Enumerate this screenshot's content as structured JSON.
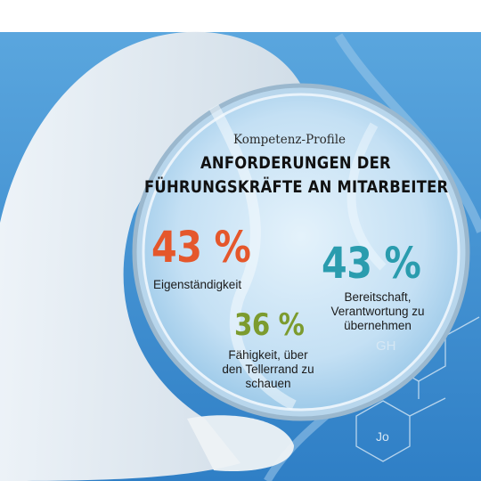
{
  "header": {
    "eyebrow": "Kompetenz-Profile",
    "title_line1": "ANFORDERUNGEN DER",
    "title_line2": "FÜHRUNGSKRÄFTE AN MITARBEITER"
  },
  "chart_data": {
    "type": "table",
    "unit": "%",
    "items": [
      {
        "value": 43,
        "display": "43 %",
        "label": "Eigenständigkeit",
        "color": "#e5572b"
      },
      {
        "value": 43,
        "display": "43 %",
        "label": "Bereitschaft, Verantwortung zu übernehmen",
        "color": "#2a9cae"
      },
      {
        "value": 36,
        "display": "36 %",
        "label": "Fähigkeit, über den Tellerrand zu schauen",
        "color": "#7c9b2e"
      }
    ]
  },
  "background": {
    "molecule_labels": [
      "GH",
      "Jo"
    ],
    "colors": {
      "sky": "#4f9ad6",
      "lens": "#cde5f6",
      "glove": "#e9eef2"
    }
  }
}
